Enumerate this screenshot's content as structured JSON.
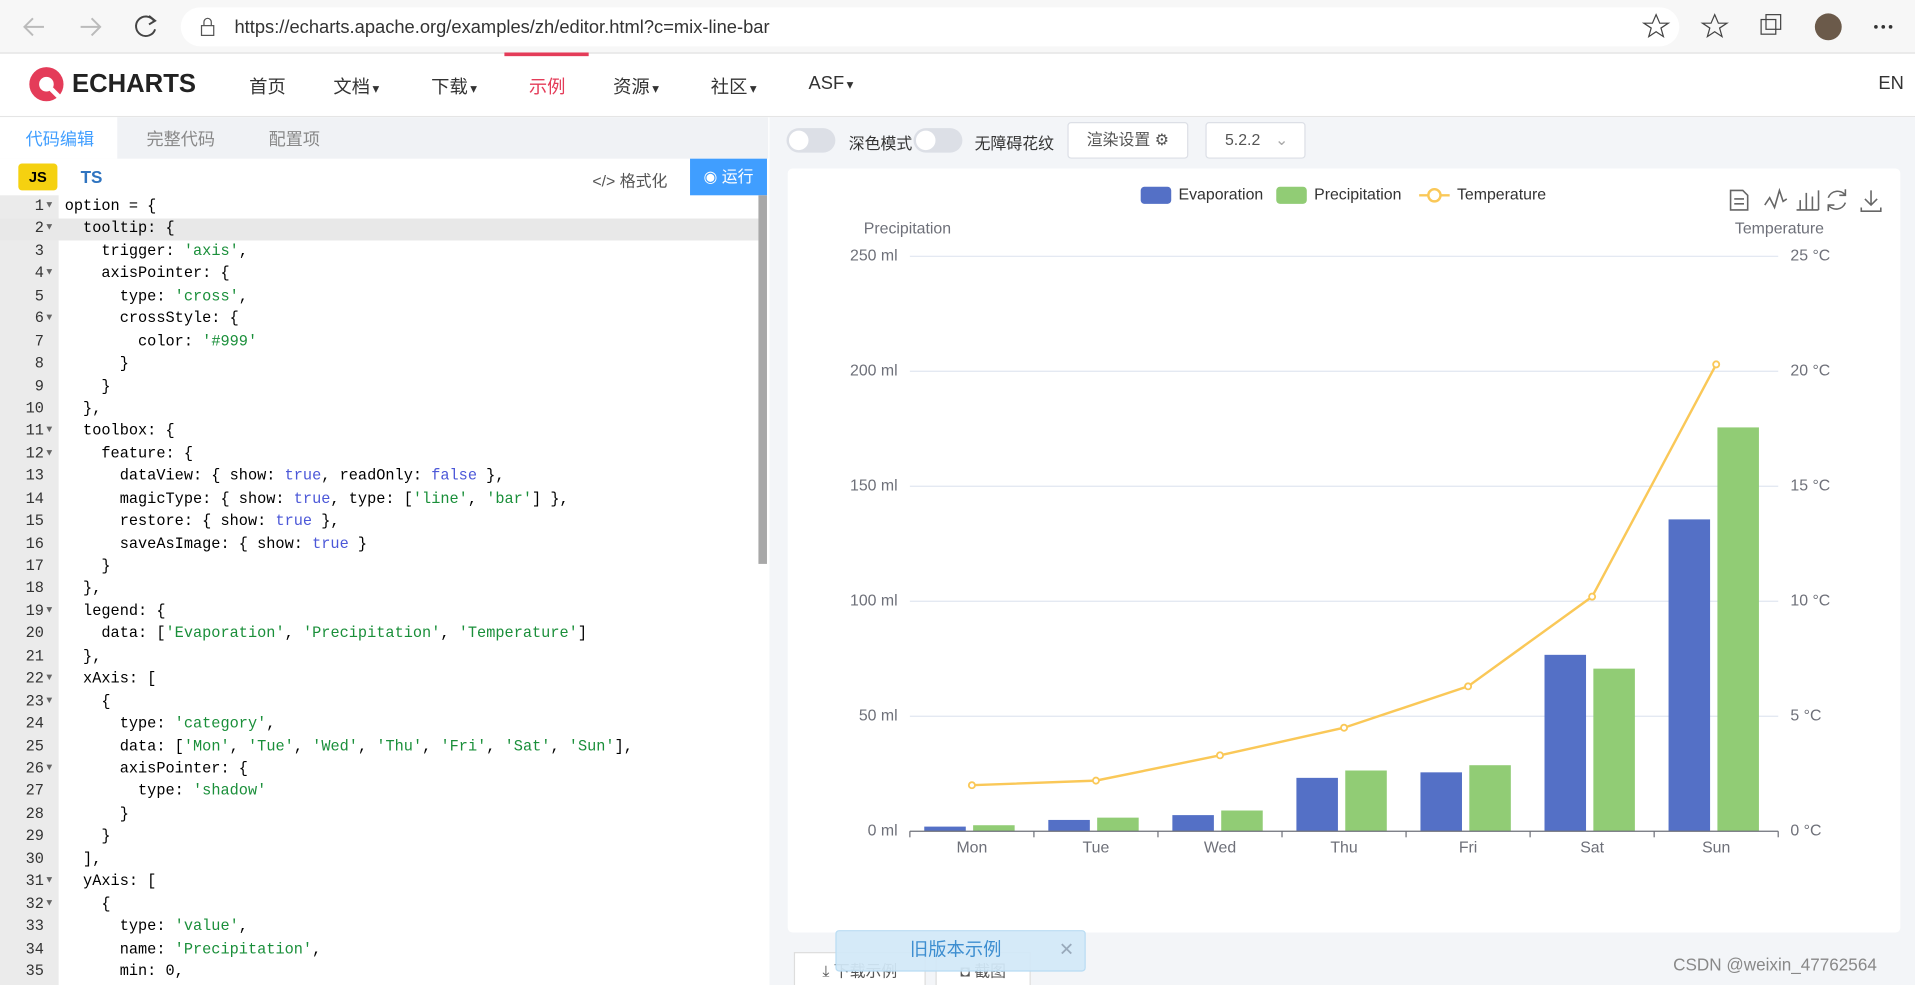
{
  "browser": {
    "url": "https://echarts.apache.org/examples/zh/editor.html?c=mix-line-bar"
  },
  "nav": {
    "brand": "ECHARTS",
    "items": [
      "首页",
      "文档",
      "下载",
      "示例",
      "资源",
      "社区",
      "ASF"
    ],
    "lang": "EN"
  },
  "editor": {
    "tabs": [
      "代码编辑",
      "完整代码",
      "配置项"
    ],
    "langs": [
      "JS",
      "TS"
    ],
    "format": "格式化",
    "run": "运行",
    "lines": [
      {
        "n": 1,
        "text": "option = {",
        "fold": true
      },
      {
        "n": 2,
        "text": "  tooltip: {",
        "fold": true
      },
      {
        "n": 3,
        "text": "    trigger: 'axis',"
      },
      {
        "n": 4,
        "text": "    axisPointer: {",
        "fold": true
      },
      {
        "n": 5,
        "text": "      type: 'cross',"
      },
      {
        "n": 6,
        "text": "      crossStyle: {",
        "fold": true
      },
      {
        "n": 7,
        "text": "        color: '#999'"
      },
      {
        "n": 8,
        "text": "      }"
      },
      {
        "n": 9,
        "text": "    }"
      },
      {
        "n": 10,
        "text": "  },"
      },
      {
        "n": 11,
        "text": "  toolbox: {",
        "fold": true
      },
      {
        "n": 12,
        "text": "    feature: {",
        "fold": true
      },
      {
        "n": 13,
        "text": "      dataView: { show: true, readOnly: false },"
      },
      {
        "n": 14,
        "text": "      magicType: { show: true, type: ['line', 'bar'] },"
      },
      {
        "n": 15,
        "text": "      restore: { show: true },"
      },
      {
        "n": 16,
        "text": "      saveAsImage: { show: true }"
      },
      {
        "n": 17,
        "text": "    }"
      },
      {
        "n": 18,
        "text": "  },"
      },
      {
        "n": 19,
        "text": "  legend: {",
        "fold": true
      },
      {
        "n": 20,
        "text": "    data: ['Evaporation', 'Precipitation', 'Temperature']"
      },
      {
        "n": 21,
        "text": "  },"
      },
      {
        "n": 22,
        "text": "  xAxis: [",
        "fold": true
      },
      {
        "n": 23,
        "text": "    {",
        "fold": true
      },
      {
        "n": 24,
        "text": "      type: 'category',"
      },
      {
        "n": 25,
        "text": "      data: ['Mon', 'Tue', 'Wed', 'Thu', 'Fri', 'Sat', 'Sun'],"
      },
      {
        "n": 26,
        "text": "      axisPointer: {",
        "fold": true
      },
      {
        "n": 27,
        "text": "        type: 'shadow'"
      },
      {
        "n": 28,
        "text": "      }"
      },
      {
        "n": 29,
        "text": "    }"
      },
      {
        "n": 30,
        "text": "  ],"
      },
      {
        "n": 31,
        "text": "  yAxis: [",
        "fold": true
      },
      {
        "n": 32,
        "text": "    {",
        "fold": true
      },
      {
        "n": 33,
        "text": "      type: 'value',"
      },
      {
        "n": 34,
        "text": "      name: 'Precipitation',"
      },
      {
        "n": 35,
        "text": "      min: 0,"
      }
    ]
  },
  "controls": {
    "dark": "深色模式",
    "decal": "无障碍花纹",
    "render": "渲染设置",
    "version": "5.2.2"
  },
  "chart_data": {
    "type": "bar-line",
    "categories": [
      "Mon",
      "Tue",
      "Wed",
      "Thu",
      "Fri",
      "Sat",
      "Sun"
    ],
    "series": [
      {
        "name": "Evaporation",
        "type": "bar",
        "color": "#5470c6",
        "values": [
          2.0,
          4.9,
          7.0,
          23.2,
          25.6,
          76.7,
          135.6
        ]
      },
      {
        "name": "Precipitation",
        "type": "bar",
        "color": "#91cc75",
        "values": [
          2.6,
          5.9,
          9.0,
          26.4,
          28.7,
          70.7,
          175.6
        ]
      },
      {
        "name": "Temperature",
        "type": "line",
        "axis": "y2",
        "color": "#fac858",
        "values": [
          2.0,
          2.2,
          3.3,
          4.5,
          6.3,
          10.2,
          20.3
        ]
      }
    ],
    "y_label": "Precipitation",
    "y2_label": "Temperature",
    "ylim": [
      0,
      250
    ],
    "yticks": [
      {
        "value": 0,
        "label": "0 ml"
      },
      {
        "value": 50,
        "label": "50 ml"
      },
      {
        "value": 100,
        "label": "100 ml"
      },
      {
        "value": 150,
        "label": "150 ml"
      },
      {
        "value": 200,
        "label": "200 ml"
      },
      {
        "value": 250,
        "label": "250 ml"
      }
    ],
    "y2lim": [
      0,
      25
    ],
    "y2ticks": [
      {
        "value": 0,
        "label": "0 °C"
      },
      {
        "value": 5,
        "label": "5 °C"
      },
      {
        "value": 10,
        "label": "10 °C"
      },
      {
        "value": 15,
        "label": "15 °C"
      },
      {
        "value": 20,
        "label": "20 °C"
      },
      {
        "value": 25,
        "label": "25 °C"
      }
    ],
    "grid": true,
    "legend": "top"
  },
  "footer": {
    "download": "下载示例",
    "screenshot": "截图",
    "toast": "旧版本示例",
    "watermark": "CSDN @weixin_47762564"
  }
}
